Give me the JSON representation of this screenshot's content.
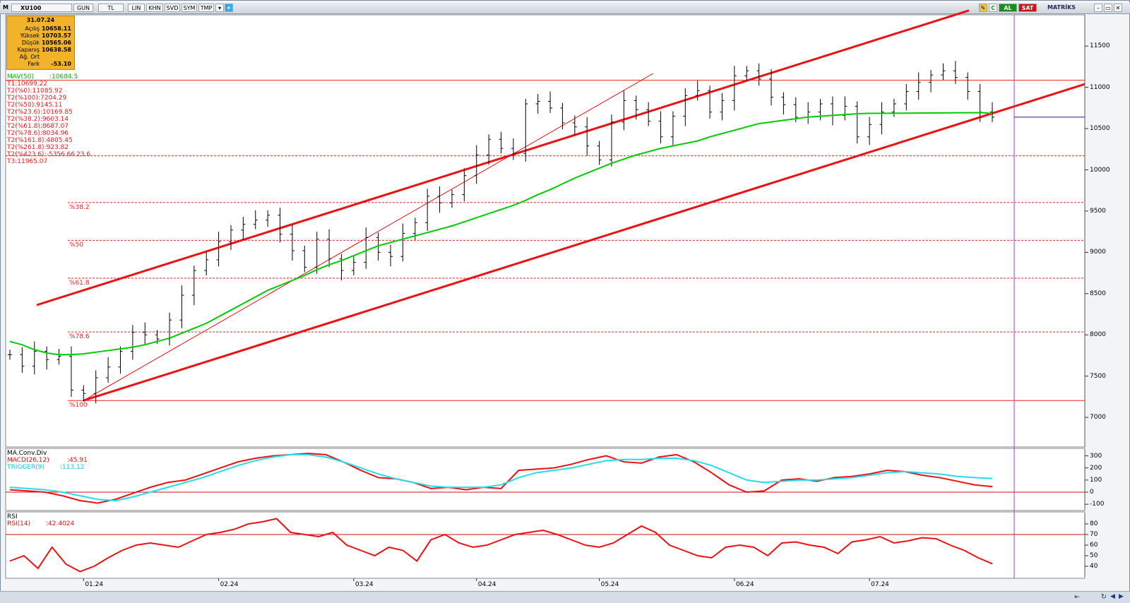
{
  "toolbar": {
    "m_label": "M",
    "symbol": "XU100",
    "buttons": [
      "GUN",
      "TL",
      "LIN",
      "KHN",
      "SVD",
      "SYM",
      "TMP"
    ],
    "dropdown_icon": "triangle-down-icon",
    "social_icon": "bird-icon",
    "c_label": "C",
    "al_label": "AL",
    "sat_label": "SAT",
    "brand": "MATRİKS",
    "colors": {
      "al": "#1a8f1a",
      "sat": "#c81414",
      "brand": "#1a2a5a"
    }
  },
  "infobox": {
    "date": "31.07.24",
    "rows": [
      {
        "label": "Açılış",
        "value": "10658.11"
      },
      {
        "label": "Yüksek",
        "value": "10703.57"
      },
      {
        "label": "Düşük",
        "value": "10565.06"
      },
      {
        "label": "Kapanış",
        "value": "10638.58"
      },
      {
        "label": "Ağ. Ort",
        "value": ""
      },
      {
        "label": "Fark",
        "value": "-53.10"
      }
    ]
  },
  "indicators": {
    "mav": {
      "label": "MAV(50)",
      "value": ":10684.5"
    },
    "fib_list": [
      "T1:10699.22",
      "T2(%0):11085.92",
      "T2(%100):7204.29",
      "T2(%50):9145.11",
      "T2(%23.6):10169.85",
      "T2(%38.2):9603.14",
      "T2(%61.8):8687.07",
      "T2(%78.6):8034.96",
      "T2(%161.8):4805.45",
      "T2(%261.8):923.82",
      "T2(%423.6):-5356.66",
      "T3:11965.07"
    ],
    "stray_label": "23.6",
    "macd_title": "MA.Conv.Div",
    "macd_label": "MACD(26,12)",
    "macd_value": ":45.91",
    "trigger_label": "TRIGGER(9)",
    "trigger_value": ":113.12",
    "rsi_title": "RSI",
    "rsi_label": "RSI(14)",
    "rsi_value": ":42.4024"
  },
  "fib_levels": [
    {
      "label": "%38.2",
      "value": 9603.14
    },
    {
      "label": "%50",
      "value": 9145.11
    },
    {
      "label": "%61.8",
      "value": 8687.07
    },
    {
      "label": "%78.6",
      "value": 8034.96
    },
    {
      "label": "%100",
      "value": 7204.29
    }
  ],
  "colors": {
    "price": "#000000",
    "mav": "#00cc00",
    "mav_highlight": "#2020b0",
    "trend": "#ee1111",
    "fib": "#ee2222",
    "macd": "#ee1111",
    "trigger": "#22ddee",
    "rsi": "#ee1111",
    "vline": "#a040c0",
    "last_price_line": "#1a1a8a"
  },
  "chart_data": [
    {
      "type": "ohlc",
      "symbol": "XU100",
      "x": [
        "12-15",
        "12-18",
        "12-20",
        "12-22",
        "12-26",
        "12-28",
        "01-02",
        "01-04",
        "01-08",
        "01-10",
        "01-12",
        "01-16",
        "01-18",
        "01-22",
        "01-24",
        "01-26",
        "01-30",
        "02-01",
        "02-05",
        "02-07",
        "02-09",
        "02-13",
        "02-15",
        "02-19",
        "02-21",
        "02-23",
        "02-27",
        "02-29",
        "03-04",
        "03-06",
        "03-08",
        "03-12",
        "03-14",
        "03-18",
        "03-20",
        "03-22",
        "03-26",
        "03-28",
        "04-01",
        "04-03",
        "04-05",
        "04-09",
        "04-15",
        "04-17",
        "04-19",
        "04-23",
        "04-25",
        "04-29",
        "05-02",
        "05-06",
        "05-08",
        "05-10",
        "05-14",
        "05-16",
        "05-20",
        "05-22",
        "05-24",
        "05-28",
        "05-30",
        "06-03",
        "06-05",
        "06-07",
        "06-11",
        "06-13",
        "06-18",
        "06-20",
        "06-24",
        "06-26",
        "06-28",
        "07-02",
        "07-04",
        "07-08",
        "07-10",
        "07-12",
        "07-16",
        "07-18",
        "07-22",
        "07-24",
        "07-26",
        "07-30",
        "07-31"
      ],
      "close": [
        7760,
        7620,
        7800,
        7700,
        7740,
        7330,
        7290,
        7480,
        7610,
        7800,
        8030,
        8000,
        7950,
        8180,
        8480,
        8780,
        8910,
        9130,
        9270,
        9340,
        9390,
        9450,
        9220,
        9020,
        8820,
        9160,
        8920,
        8780,
        8880,
        9180,
        9000,
        8950,
        9230,
        9360,
        9680,
        9600,
        9700,
        9930,
        10180,
        10370,
        10260,
        10200,
        10800,
        10830,
        10750,
        10570,
        10520,
        10290,
        10120,
        10580,
        10840,
        10730,
        10590,
        10400,
        10650,
        10900,
        10960,
        10700,
        10840,
        11140,
        11200,
        11100,
        10880,
        10790,
        10638,
        10700,
        10800,
        10660,
        10770,
        10400,
        10550,
        10700,
        10800,
        10950,
        11060,
        11150,
        11200,
        11120,
        10950,
        10700,
        10639
      ],
      "mav50": [
        7920,
        7880,
        7820,
        7780,
        7760,
        7760,
        7770,
        7790,
        7810,
        7830,
        7850,
        7880,
        7920,
        7960,
        8020,
        8080,
        8140,
        8220,
        8300,
        8380,
        8460,
        8540,
        8600,
        8660,
        8720,
        8790,
        8850,
        8900,
        8960,
        9020,
        9080,
        9120,
        9160,
        9200,
        9240,
        9280,
        9320,
        9370,
        9420,
        9470,
        9520,
        9570,
        9630,
        9700,
        9760,
        9830,
        9900,
        9960,
        10020,
        10080,
        10130,
        10180,
        10220,
        10260,
        10290,
        10320,
        10350,
        10400,
        10440,
        10480,
        10520,
        10560,
        10580,
        10600,
        10620,
        10640,
        10650,
        10660,
        10670,
        10680,
        10684.5,
        10685,
        10686,
        10687,
        10688,
        10689,
        10690,
        10691,
        10692,
        10693,
        10684.5
      ],
      "ylim": [
        6650,
        11870
      ],
      "yticks": [
        7000,
        7500,
        8000,
        8500,
        9000,
        9500,
        10000,
        10500,
        11000,
        11500
      ],
      "month_labels": [
        "01.24",
        "02.24",
        "03.24",
        "04.24",
        "05.24",
        "06.24",
        "07.24"
      ]
    },
    {
      "type": "line",
      "name": "MACD",
      "series": [
        {
          "name": "MACD(26,12)",
          "values": [
            20,
            10,
            0,
            -30,
            -70,
            -90,
            -60,
            -10,
            40,
            80,
            100,
            150,
            200,
            250,
            280,
            300,
            310,
            320,
            310,
            250,
            180,
            120,
            110,
            80,
            30,
            40,
            20,
            40,
            30,
            180,
            190,
            200,
            230,
            270,
            300,
            250,
            240,
            290,
            310,
            250,
            160,
            60,
            0,
            10,
            100,
            110,
            90,
            120,
            130,
            150,
            180,
            170,
            140,
            120,
            90,
            60,
            45.91
          ]
        },
        {
          "name": "TRIGGER(9)",
          "values": [
            40,
            30,
            20,
            0,
            -30,
            -60,
            -70,
            -40,
            0,
            40,
            80,
            120,
            170,
            220,
            260,
            290,
            310,
            310,
            290,
            250,
            200,
            150,
            110,
            80,
            50,
            40,
            40,
            40,
            60,
            120,
            160,
            180,
            200,
            230,
            260,
            270,
            270,
            280,
            280,
            260,
            220,
            160,
            100,
            80,
            90,
            100,
            100,
            110,
            120,
            140,
            160,
            170,
            160,
            150,
            130,
            120,
            113.12
          ]
        }
      ],
      "ylim": [
        -140,
        350
      ],
      "yticks": [
        -100,
        0,
        100,
        200,
        300
      ]
    },
    {
      "type": "line",
      "name": "RSI",
      "series": [
        {
          "name": "RSI(14)",
          "values": [
            45,
            50,
            38,
            58,
            42,
            35,
            40,
            48,
            55,
            60,
            62,
            60,
            58,
            64,
            70,
            72,
            75,
            80,
            82,
            85,
            72,
            70,
            68,
            72,
            60,
            55,
            50,
            58,
            55,
            45,
            65,
            70,
            62,
            58,
            60,
            65,
            70,
            72,
            74,
            70,
            65,
            60,
            58,
            62,
            70,
            78,
            72,
            60,
            55,
            50,
            48,
            58,
            60,
            58,
            50,
            62,
            63,
            60,
            58,
            52,
            63,
            65,
            68,
            62,
            64,
            67,
            66,
            60,
            55,
            48,
            42.4024
          ]
        }
      ],
      "ylim": [
        30,
        90
      ],
      "yticks": [
        40,
        50,
        60,
        70,
        80
      ]
    }
  ]
}
